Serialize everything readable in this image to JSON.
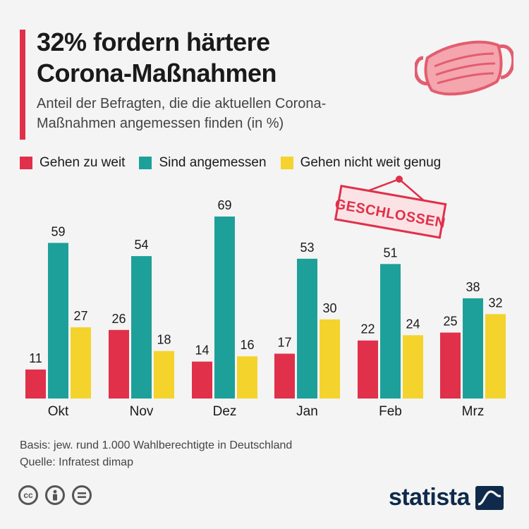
{
  "header": {
    "title_line1": "32% fordern härtere",
    "title_line2": "Corona-Maßnahmen",
    "subtitle_line1": "Anteil der Befragten, die die aktuellen Corona-",
    "subtitle_line2": "Maßnahmen angemessen finden (in %)"
  },
  "sign": {
    "text": "GESCHLOSSEN"
  },
  "colors": {
    "red": "#e0304a",
    "teal": "#1ea09a",
    "yellow": "#f4d32c",
    "accent": "#e0304a",
    "brand": "#0f2a4a"
  },
  "chart_data": {
    "type": "bar",
    "categories": [
      "Okt",
      "Nov",
      "Dez",
      "Jan",
      "Feb",
      "Mrz"
    ],
    "series": [
      {
        "name": "Gehen zu weit",
        "color": "#e0304a",
        "values": [
          11,
          26,
          14,
          17,
          22,
          25
        ]
      },
      {
        "name": "Sind angemessen",
        "color": "#1ea09a",
        "values": [
          59,
          54,
          69,
          53,
          51,
          38
        ]
      },
      {
        "name": "Gehen nicht weit genug",
        "color": "#f4d32c",
        "values": [
          27,
          18,
          16,
          30,
          24,
          32
        ]
      }
    ],
    "title": "32% fordern härtere Corona-Maßnahmen",
    "ylim": [
      0,
      69
    ],
    "legend": "top"
  },
  "footer": {
    "basis": "Basis: jew. rund 1.000 Wahlberechtigte in Deutschland",
    "source": "Quelle: Infratest dimap",
    "brand": "statista",
    "cc_icons": [
      "cc-icon",
      "attribution-icon",
      "no-derivatives-icon"
    ]
  }
}
